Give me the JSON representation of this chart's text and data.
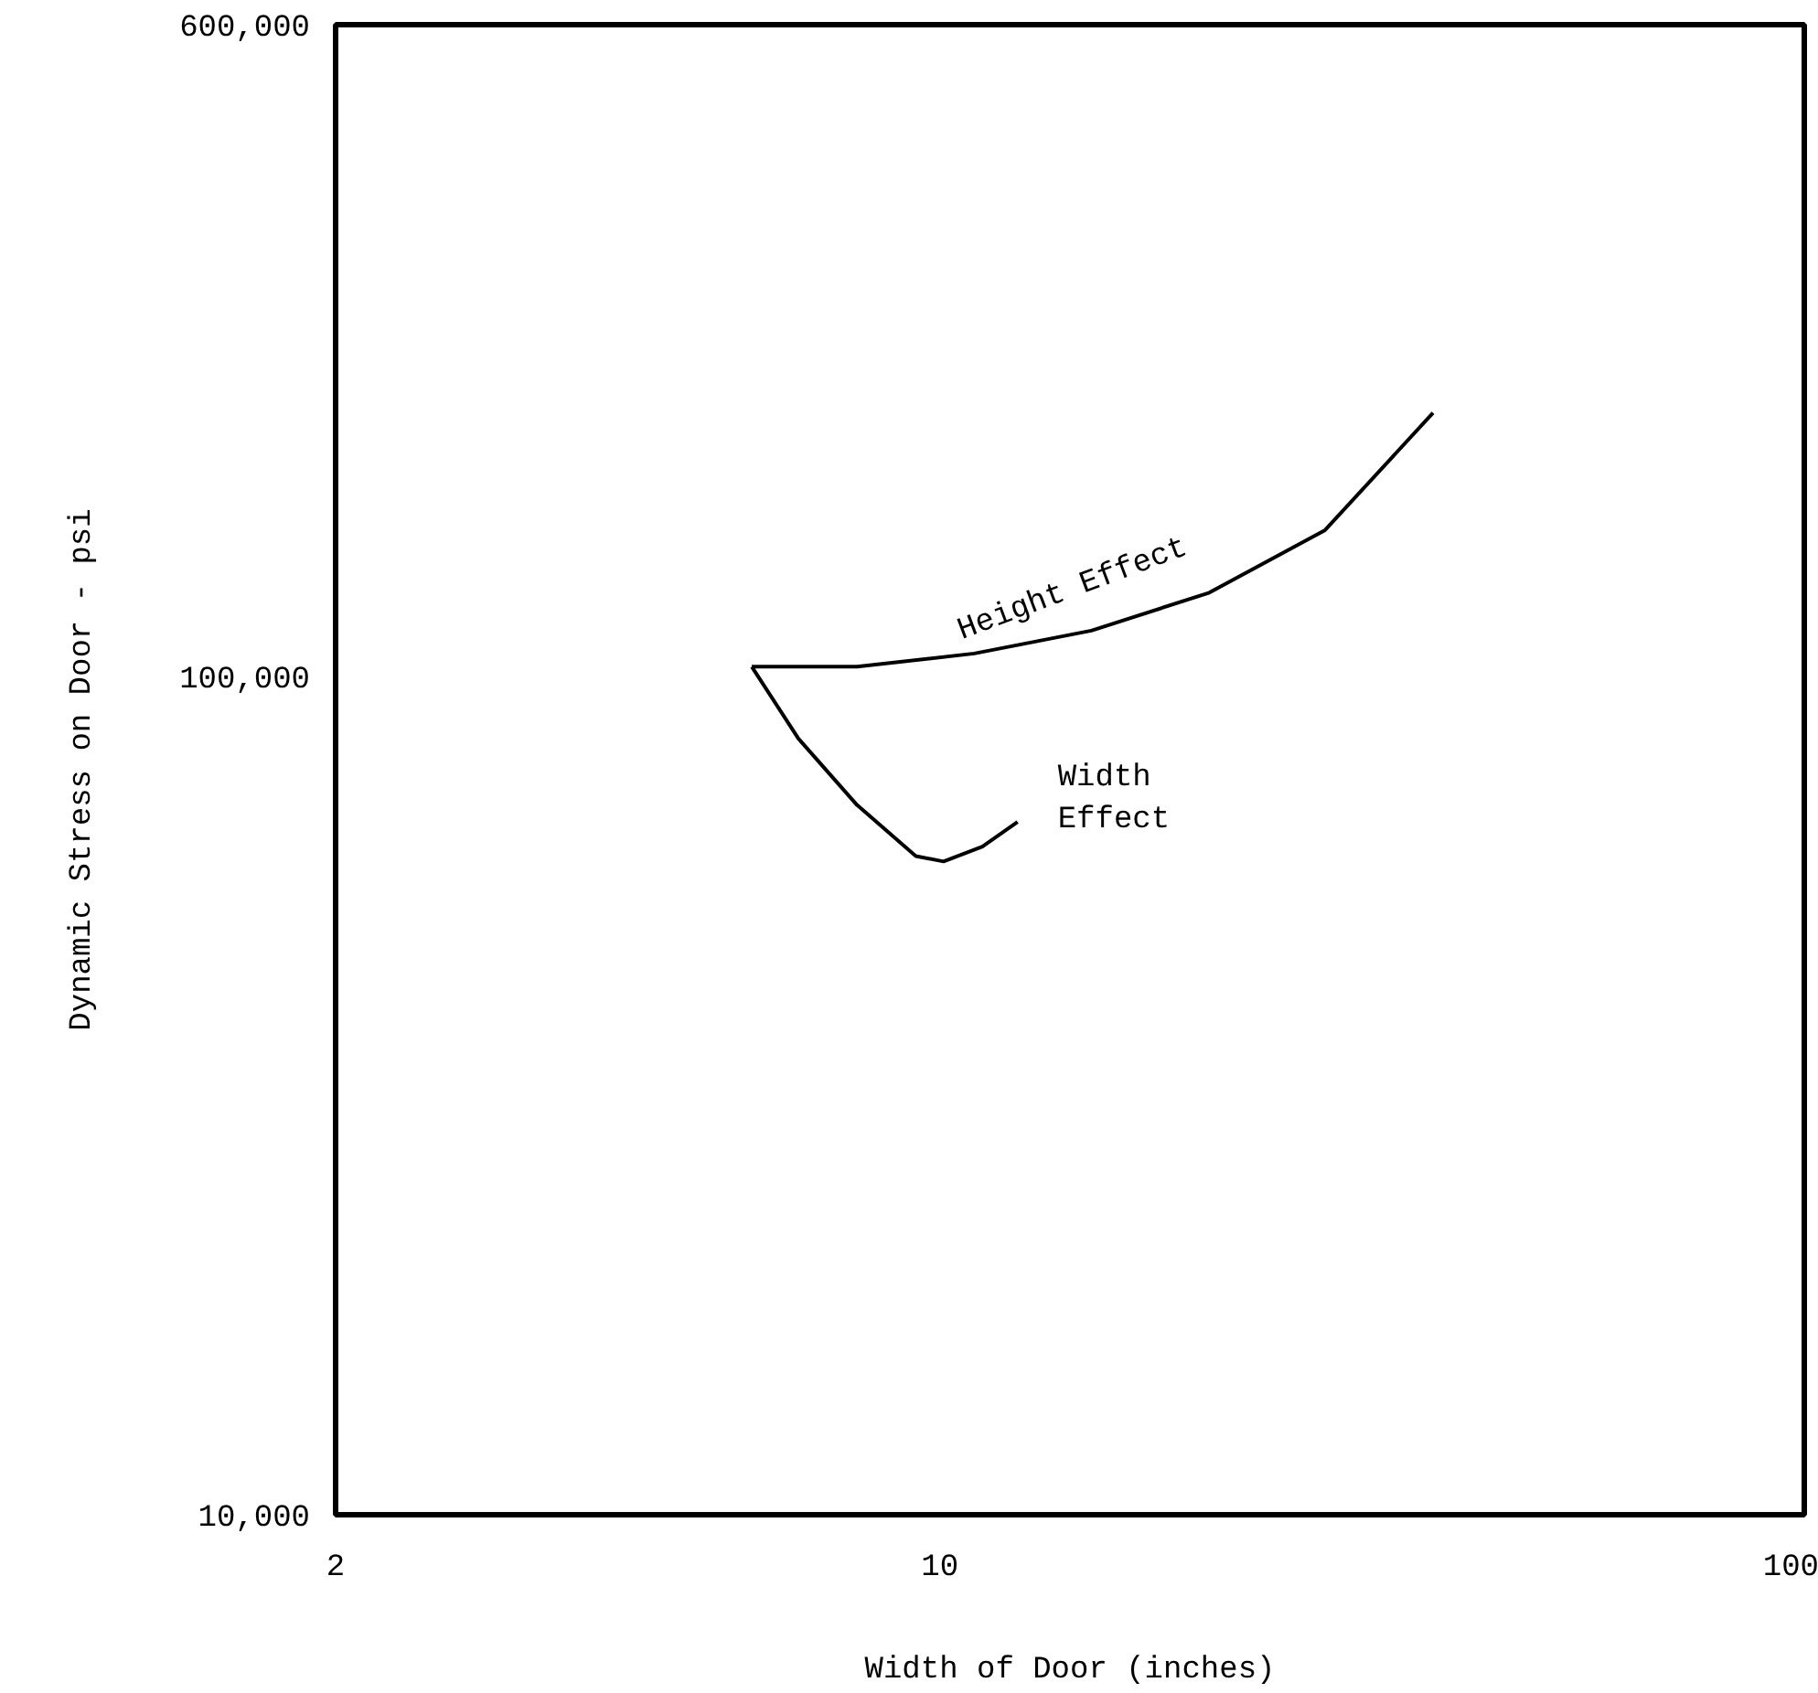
{
  "chart_data": {
    "type": "line",
    "xlabel": "Width of Door (inches)",
    "ylabel": "Dynamic Stress on Door - psi",
    "log": "xy",
    "grid": false,
    "marker": "none",
    "line_style": "solid",
    "xlim": [
      2,
      100
    ],
    "xticks": [
      2,
      10,
      100
    ],
    "ylim": [
      10000,
      600000
    ],
    "yticks": [
      {
        "value": 10000,
        "label": "10,000"
      },
      {
        "value": 100000,
        "label": "100,000"
      },
      {
        "value": 600000,
        "label": "600,000"
      }
    ],
    "series": [
      {
        "name": "Height Effect",
        "color": "#000000",
        "x": [
          6.06,
          8.02,
          10.96,
          14.97,
          20.5,
          27.9,
          37.2
        ],
        "values": [
          102800,
          102800,
          106600,
          113500,
          126000,
          149600,
          206500
        ]
      },
      {
        "name": "Width Effect",
        "color": "#000000",
        "x": [
          6.06,
          6.86,
          8.02,
          9.38,
          10.1,
          11.2,
          12.3
        ],
        "values": [
          102800,
          84400,
          70300,
          61100,
          60200,
          62700,
          67100
        ]
      }
    ]
  }
}
